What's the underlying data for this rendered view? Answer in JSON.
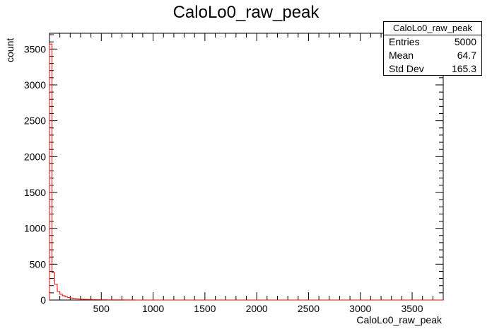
{
  "chart_data": {
    "type": "bar",
    "title": "CaloLo0_raw_peak",
    "xlabel": "CaloLo0_raw_peak",
    "ylabel": "count",
    "xlim": [
      0,
      3800
    ],
    "ylim": [
      0,
      3720
    ],
    "x_ticks": [
      500,
      1000,
      1500,
      2000,
      2500,
      3000,
      3500
    ],
    "y_ticks": [
      0,
      500,
      1000,
      1500,
      2000,
      2500,
      3000,
      3500
    ],
    "bin_width": 25,
    "bin_starts": [
      0,
      25,
      50,
      75,
      100,
      125,
      150,
      175,
      200,
      225,
      250,
      275,
      300,
      325,
      350,
      375,
      400,
      425,
      450,
      475,
      500,
      525,
      550,
      575,
      600,
      625,
      650,
      675,
      700,
      725,
      750,
      775,
      800
    ],
    "values": [
      3570,
      380,
      220,
      120,
      80,
      60,
      45,
      35,
      28,
      22,
      18,
      15,
      12,
      10,
      9,
      8,
      7,
      6,
      5,
      5,
      4,
      4,
      3,
      3,
      3,
      2,
      2,
      2,
      2,
      1,
      1,
      1,
      1
    ],
    "colors": {
      "line": "#ff0000",
      "axes": "#000000"
    },
    "grid": false,
    "legend": "none",
    "stats_box": {
      "name": "CaloLo0_raw_peak",
      "rows": [
        {
          "label": "Entries",
          "value": "5000"
        },
        {
          "label": "Mean",
          "value": "64.7"
        },
        {
          "label": "Std Dev",
          "value": "165.3"
        }
      ]
    }
  }
}
